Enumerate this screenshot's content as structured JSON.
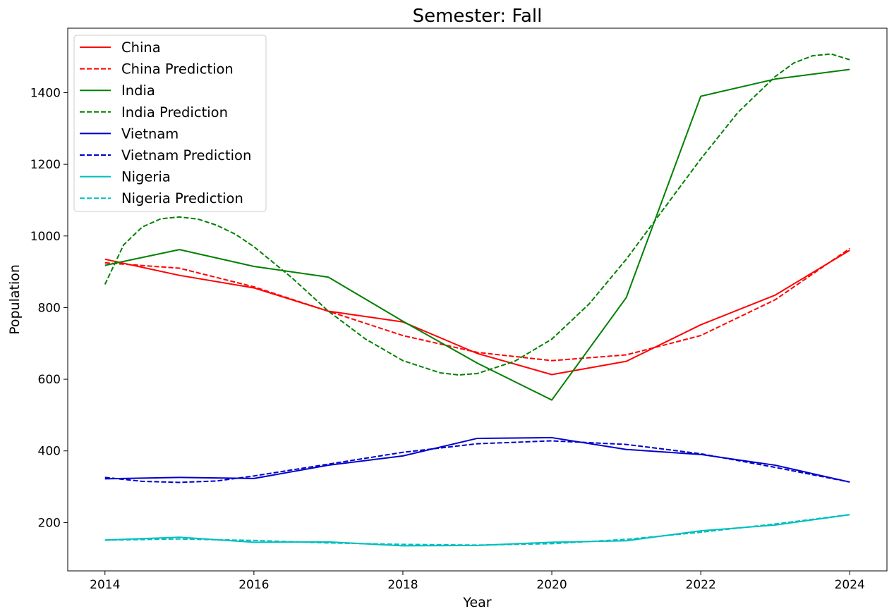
{
  "chart_data": {
    "type": "line",
    "title": "Semester: Fall",
    "xlabel": "Year",
    "ylabel": "Population",
    "xlim": [
      2013.5,
      2024.5
    ],
    "ylim": [
      65,
      1580
    ],
    "xticks": [
      2014,
      2016,
      2018,
      2020,
      2022,
      2024
    ],
    "yticks": [
      200,
      400,
      600,
      800,
      1000,
      1200,
      1400
    ],
    "grid": false,
    "legend_position": "top-left",
    "series": [
      {
        "name": "China",
        "color": "#ff0000",
        "style": "solid",
        "x": [
          2014,
          2015,
          2016,
          2017,
          2018,
          2019,
          2020,
          2021,
          2022,
          2023,
          2024
        ],
        "y": [
          935,
          890,
          855,
          790,
          760,
          672,
          613,
          650,
          752,
          835,
          960
        ]
      },
      {
        "name": "China Prediction",
        "color": "#ff0000",
        "style": "dashed",
        "x": [
          2014,
          2015,
          2016,
          2017,
          2018,
          2019,
          2020,
          2021,
          2022,
          2023,
          2024
        ],
        "y": [
          925,
          910,
          858,
          790,
          722,
          675,
          652,
          668,
          722,
          822,
          965
        ]
      },
      {
        "name": "India",
        "color": "#008000",
        "style": "solid",
        "x": [
          2014,
          2015,
          2016,
          2017,
          2018,
          2019,
          2020,
          2021,
          2022,
          2023,
          2024
        ],
        "y": [
          918,
          962,
          915,
          885,
          762,
          645,
          542,
          828,
          1390,
          1438,
          1465
        ]
      },
      {
        "name": "India Prediction",
        "color": "#008000",
        "style": "dashed",
        "x": [
          2014,
          2014.25,
          2014.5,
          2014.75,
          2015,
          2015.25,
          2015.5,
          2015.75,
          2016,
          2016.5,
          2017,
          2017.5,
          2018,
          2018.5,
          2018.75,
          2019,
          2019.5,
          2020,
          2020.5,
          2021,
          2021.5,
          2022,
          2022.5,
          2023,
          2023.25,
          2023.5,
          2023.75,
          2024
        ],
        "y": [
          865,
          975,
          1025,
          1048,
          1053,
          1047,
          1030,
          1005,
          970,
          885,
          790,
          712,
          652,
          618,
          612,
          616,
          650,
          712,
          810,
          935,
          1075,
          1215,
          1345,
          1445,
          1483,
          1503,
          1508,
          1492
        ]
      },
      {
        "name": "Vietnam",
        "color": "#0000cd",
        "style": "solid",
        "x": [
          2014,
          2015,
          2016,
          2017,
          2018,
          2019,
          2020,
          2021,
          2022,
          2023,
          2024
        ],
        "y": [
          322,
          326,
          323,
          360,
          386,
          435,
          437,
          404,
          390,
          360,
          313
        ]
      },
      {
        "name": "Vietnam Prediction",
        "color": "#0000cd",
        "style": "dashed",
        "x": [
          2014,
          2014.5,
          2015,
          2015.5,
          2016,
          2017,
          2018,
          2019,
          2020,
          2021,
          2022,
          2023,
          2024
        ],
        "y": [
          326,
          315,
          312,
          316,
          330,
          363,
          396,
          420,
          428,
          418,
          392,
          354,
          313
        ]
      },
      {
        "name": "Nigeria",
        "color": "#00bfbf",
        "style": "solid",
        "x": [
          2014,
          2015,
          2016,
          2017,
          2018,
          2019,
          2020,
          2021,
          2022,
          2023,
          2024
        ],
        "y": [
          151,
          159,
          145,
          146,
          135,
          136,
          145,
          149,
          177,
          193,
          222
        ]
      },
      {
        "name": "Nigeria Prediction",
        "color": "#00bfbf",
        "style": "dashed",
        "x": [
          2014,
          2015,
          2016,
          2017,
          2018,
          2019,
          2020,
          2021,
          2022,
          2023,
          2024
        ],
        "y": [
          151,
          154,
          150,
          143,
          139,
          137,
          141,
          153,
          173,
          196,
          222
        ]
      }
    ]
  }
}
